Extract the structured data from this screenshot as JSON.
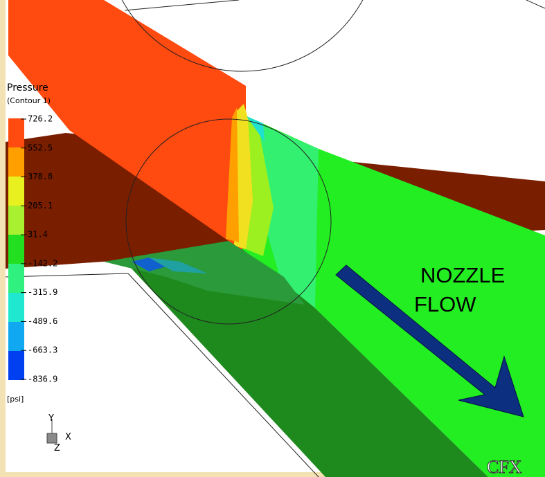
{
  "legend": {
    "title": "Pressure",
    "subtitle": "(Contour 1)",
    "ticks": [
      "726.2",
      "552.5",
      "378.8",
      "205.1",
      "31.4",
      "-142.2",
      "-315.9",
      "-489.6",
      "-663.3",
      "-836.9"
    ],
    "unit": "[psi]"
  },
  "axes_triad": {
    "y": "Y",
    "x": "X",
    "z": "Z"
  },
  "annotation": {
    "lines": [
      "NOZZLE",
      "FLOW"
    ]
  },
  "logo": "CFX"
}
